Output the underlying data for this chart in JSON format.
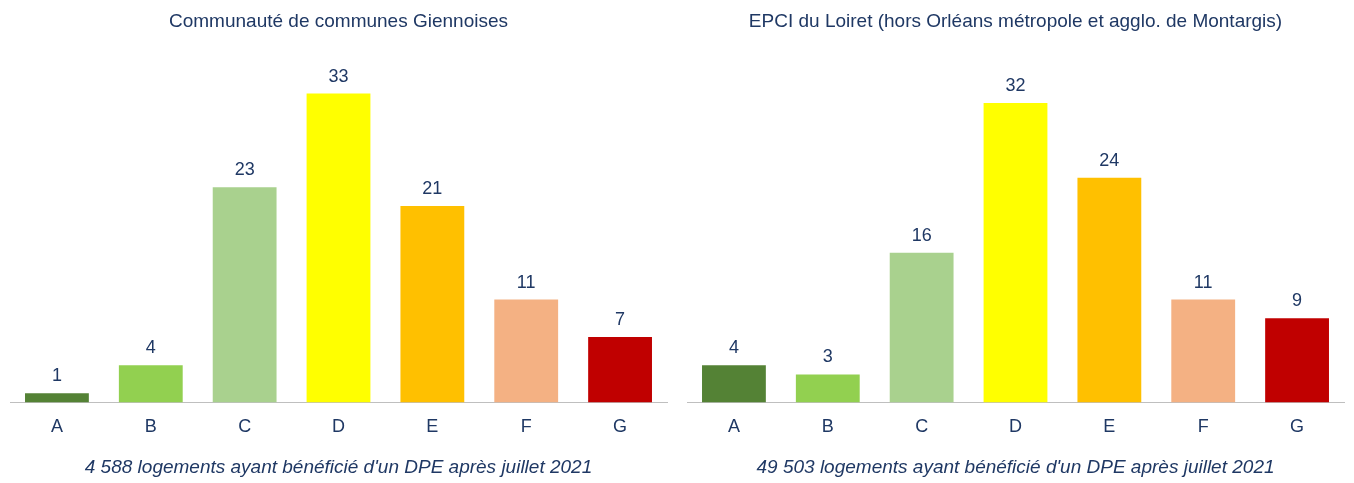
{
  "chart_data": [
    {
      "type": "bar",
      "title": "Communauté de communes Giennoises",
      "categories": [
        "A",
        "B",
        "C",
        "D",
        "E",
        "F",
        "G"
      ],
      "values": [
        1,
        4,
        23,
        33,
        21,
        11,
        7
      ],
      "colors": [
        "#548235",
        "#92d050",
        "#a9d18e",
        "#ffff00",
        "#ffc000",
        "#f4b183",
        "#c00000"
      ],
      "data_labels": true,
      "grid": false,
      "legend": false,
      "tick_labels": "x",
      "annotations": [
        "4 588 logements ayant bénéficié d'un DPE après juillet 2021"
      ]
    },
    {
      "type": "bar",
      "title": "EPCI du Loiret (hors Orléans métropole et agglo. de Montargis)",
      "categories": [
        "A",
        "B",
        "C",
        "D",
        "E",
        "F",
        "G"
      ],
      "values": [
        4,
        3,
        16,
        32,
        24,
        11,
        9
      ],
      "colors": [
        "#548235",
        "#92d050",
        "#a9d18e",
        "#ffff00",
        "#ffc000",
        "#f4b183",
        "#c00000"
      ],
      "data_labels": true,
      "grid": false,
      "legend": false,
      "tick_labels": "x",
      "annotations": [
        "49 503 logements ayant bénéficié d'un DPE après juillet 2021"
      ]
    }
  ]
}
